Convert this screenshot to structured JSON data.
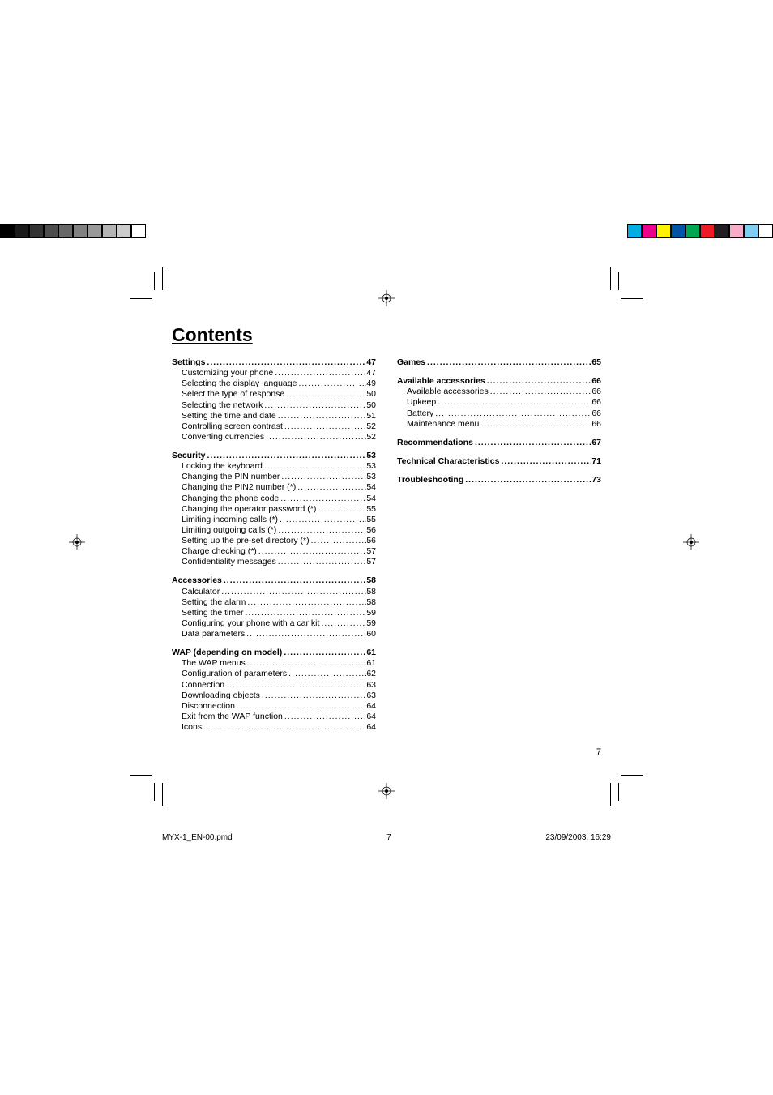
{
  "title": "Contents",
  "page_number": "7",
  "footer": {
    "filename": "MYX-1_EN-00.pmd",
    "page": "7",
    "datetime": "23/09/2003, 16:29"
  },
  "left_column": [
    {
      "type": "head",
      "label": "Settings",
      "page": "47"
    },
    {
      "type": "sub",
      "label": "Customizing your phone",
      "page": "47"
    },
    {
      "type": "sub",
      "label": "Selecting the display language",
      "page": "49"
    },
    {
      "type": "sub",
      "label": "Select the type of response",
      "page": "50"
    },
    {
      "type": "sub",
      "label": "Selecting the network",
      "page": "50"
    },
    {
      "type": "sub",
      "label": "Setting the time and date",
      "page": "51"
    },
    {
      "type": "sub",
      "label": "Controlling screen contrast",
      "page": "52"
    },
    {
      "type": "sub",
      "label": "Converting currencies",
      "page": "52"
    },
    {
      "type": "head",
      "gap": true,
      "label": "Security",
      "page": "53"
    },
    {
      "type": "sub",
      "label": "Locking the keyboard",
      "page": "53"
    },
    {
      "type": "sub",
      "label": "Changing the PIN number",
      "page": "53"
    },
    {
      "type": "sub",
      "label": "Changing the PIN2 number (*)",
      "page": "54"
    },
    {
      "type": "sub",
      "label": "Changing the phone code",
      "page": "54"
    },
    {
      "type": "sub",
      "label": "Changing the operator password (*)",
      "page": "55"
    },
    {
      "type": "sub",
      "label": "Limiting incoming calls (*)",
      "page": "55"
    },
    {
      "type": "sub",
      "label": "Limiting outgoing calls (*)",
      "page": "56"
    },
    {
      "type": "sub",
      "label": "Setting up the pre-set directory (*)",
      "page": "56"
    },
    {
      "type": "sub",
      "label": "Charge checking (*)",
      "page": "57"
    },
    {
      "type": "sub",
      "label": "Confidentiality messages",
      "page": "57"
    },
    {
      "type": "head",
      "gap": true,
      "label": "Accessories",
      "page": "58"
    },
    {
      "type": "sub",
      "label": "Calculator",
      "page": "58"
    },
    {
      "type": "sub",
      "label": "Setting the alarm",
      "page": "58"
    },
    {
      "type": "sub",
      "label": "Setting the timer",
      "page": "59"
    },
    {
      "type": "sub",
      "label": "Configuring your phone with a car kit",
      "page": "59"
    },
    {
      "type": "sub",
      "label": "Data parameters",
      "page": "60"
    },
    {
      "type": "head",
      "gap": true,
      "label": "WAP (depending on model)",
      "page": "61"
    },
    {
      "type": "sub",
      "label": "The WAP menus",
      "page": "61"
    },
    {
      "type": "sub",
      "label": "Configuration of parameters",
      "page": "62"
    },
    {
      "type": "sub",
      "label": "Connection",
      "page": "63"
    },
    {
      "type": "sub",
      "label": "Downloading objects",
      "page": "63"
    },
    {
      "type": "sub",
      "label": "Disconnection",
      "page": "64"
    },
    {
      "type": "sub",
      "label": "Exit from the WAP function",
      "page": "64"
    },
    {
      "type": "sub",
      "label": "Icons",
      "page": "64"
    }
  ],
  "right_column": [
    {
      "type": "head",
      "label": "Games",
      "page": "65"
    },
    {
      "type": "head",
      "gap": true,
      "label": "Available accessories",
      "page": "66"
    },
    {
      "type": "sub",
      "label": "Available accessories",
      "page": "66"
    },
    {
      "type": "sub",
      "label": "Upkeep",
      "page": "66"
    },
    {
      "type": "sub",
      "label": "Battery",
      "page": "66"
    },
    {
      "type": "sub",
      "label": "Maintenance menu",
      "page": "66"
    },
    {
      "type": "head",
      "gap": true,
      "label": "Recommendations",
      "page": "67"
    },
    {
      "type": "head",
      "gap": true,
      "label": "Technical Characteristics",
      "page": "71"
    },
    {
      "type": "head",
      "gap": true,
      "label": "Troubleshooting",
      "page": "73"
    }
  ]
}
